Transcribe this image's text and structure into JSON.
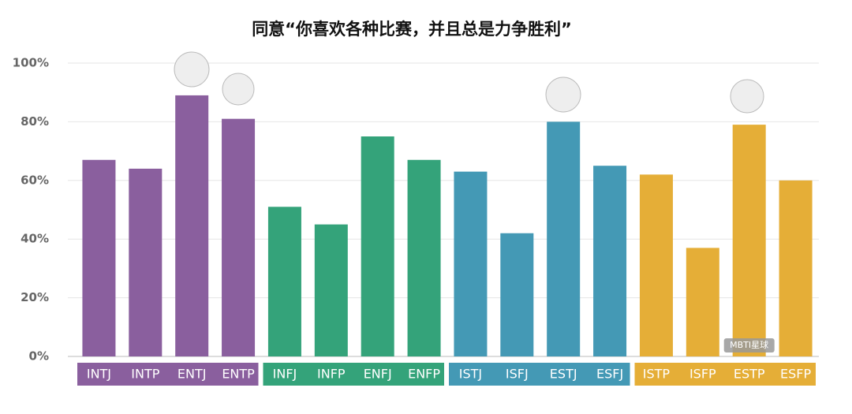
{
  "chart_data": {
    "type": "bar",
    "title": "同意“你喜欢各种比赛，并且总是力争胜利”",
    "categories": [
      "INTJ",
      "INTP",
      "ENTJ",
      "ENTP",
      "INFJ",
      "INFP",
      "ENFJ",
      "ENFP",
      "ISTJ",
      "ISFJ",
      "ESTJ",
      "ESFJ",
      "ISTP",
      "ISFP",
      "ESTP",
      "ESFP"
    ],
    "values": [
      67,
      64,
      89,
      81,
      51,
      45,
      75,
      67,
      63,
      42,
      80,
      65,
      62,
      37,
      79,
      60
    ],
    "colors": [
      "#8a5f9e",
      "#8a5f9e",
      "#8a5f9e",
      "#8a5f9e",
      "#34a37a",
      "#34a37a",
      "#34a37a",
      "#34a37a",
      "#4499b5",
      "#4499b5",
      "#4499b5",
      "#4499b5",
      "#e5ae37",
      "#e5ae37",
      "#e5ae37",
      "#e5ae37"
    ],
    "ylim": [
      0,
      100
    ],
    "yticks": [
      {
        "value": 0,
        "label": "0%"
      },
      {
        "value": 20,
        "label": "20%"
      },
      {
        "value": 40,
        "label": "40%"
      },
      {
        "value": 60,
        "label": "60%"
      },
      {
        "value": 80,
        "label": "80%"
      },
      {
        "value": 100,
        "label": "100%"
      }
    ],
    "grid": true,
    "watermark": "MBTI星球"
  }
}
